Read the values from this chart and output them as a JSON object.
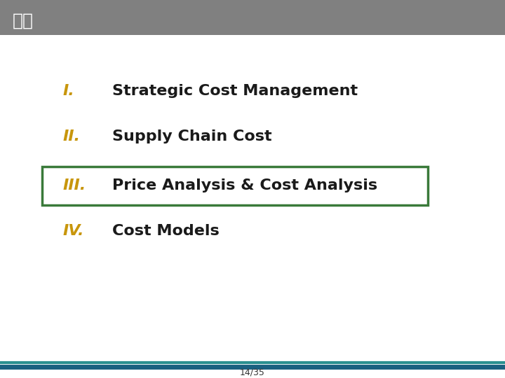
{
  "title": "차례",
  "title_bg_color": "#808080",
  "title_text_color": "#ffffff",
  "title_font_size": 18,
  "items": [
    {
      "number": "I.",
      "text": "Strategic Cost Management",
      "highlighted": false
    },
    {
      "number": "II.",
      "text": "Supply Chain Cost",
      "highlighted": false
    },
    {
      "number": "III.",
      "text": "Price Analysis & Cost Analysis",
      "highlighted": true
    },
    {
      "number": "IV.",
      "text": "Cost Models",
      "highlighted": false
    }
  ],
  "number_color": "#c8960c",
  "text_color": "#1a1a1a",
  "highlight_box_color": "#3a7a3a",
  "font_size": 16,
  "page_number": "14/35",
  "footer_line_color1": "#1a6080",
  "footer_line_color2": "#2a9090",
  "bg_color": "#ffffff"
}
